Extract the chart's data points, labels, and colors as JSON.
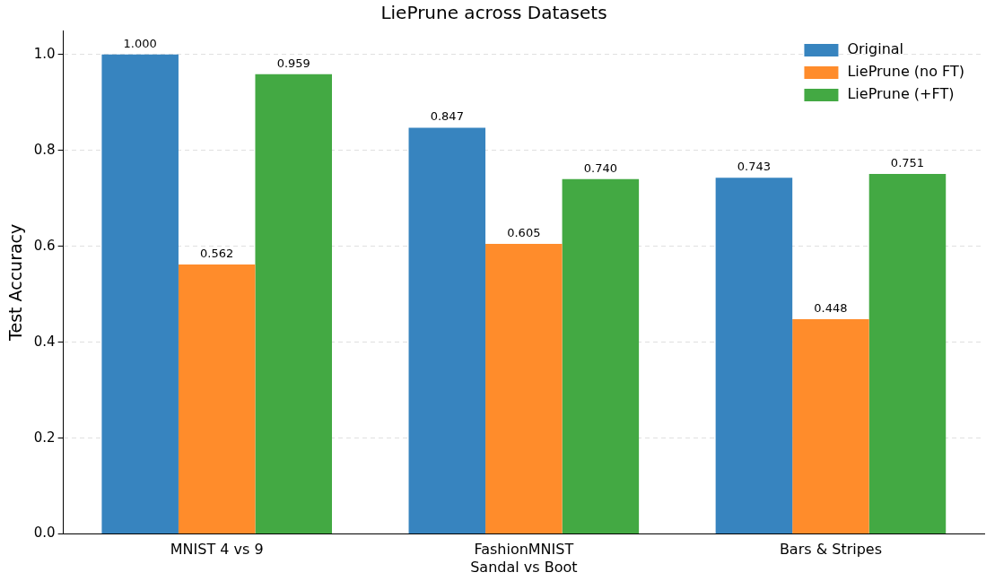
{
  "chart_data": {
    "type": "bar",
    "title": "LiePrune across Datasets",
    "ylabel": "Test Accuracy",
    "categories": [
      "MNIST 4 vs 9",
      "FashionMNIST\nSandal vs Boot",
      "Bars & Stripes"
    ],
    "series": [
      {
        "name": "Original",
        "color": "#3784bf",
        "values": [
          1.0,
          0.847,
          0.743
        ],
        "value_labels": [
          "1.000",
          "0.847",
          "0.743"
        ]
      },
      {
        "name": "LiePrune (no FT)",
        "color": "#ff8c2b",
        "values": [
          0.562,
          0.605,
          0.448
        ],
        "value_labels": [
          "0.562",
          "0.605",
          "0.448"
        ]
      },
      {
        "name": "LiePrune (+FT)",
        "color": "#43a943",
        "values": [
          0.959,
          0.74,
          0.751
        ],
        "value_labels": [
          "0.959",
          "0.740",
          "0.751"
        ]
      }
    ],
    "ylim": [
      0,
      1.05
    ],
    "yticks": [
      {
        "value": 0,
        "label": "0.0"
      },
      {
        "value": 0.2,
        "label": "0.2"
      },
      {
        "value": 0.4,
        "label": "0.4"
      },
      {
        "value": 0.6,
        "label": "0.6"
      },
      {
        "value": 0.8,
        "label": "0.8"
      },
      {
        "value": 1.0,
        "label": "1.0"
      }
    ],
    "grid": "y",
    "legend": "top right"
  }
}
